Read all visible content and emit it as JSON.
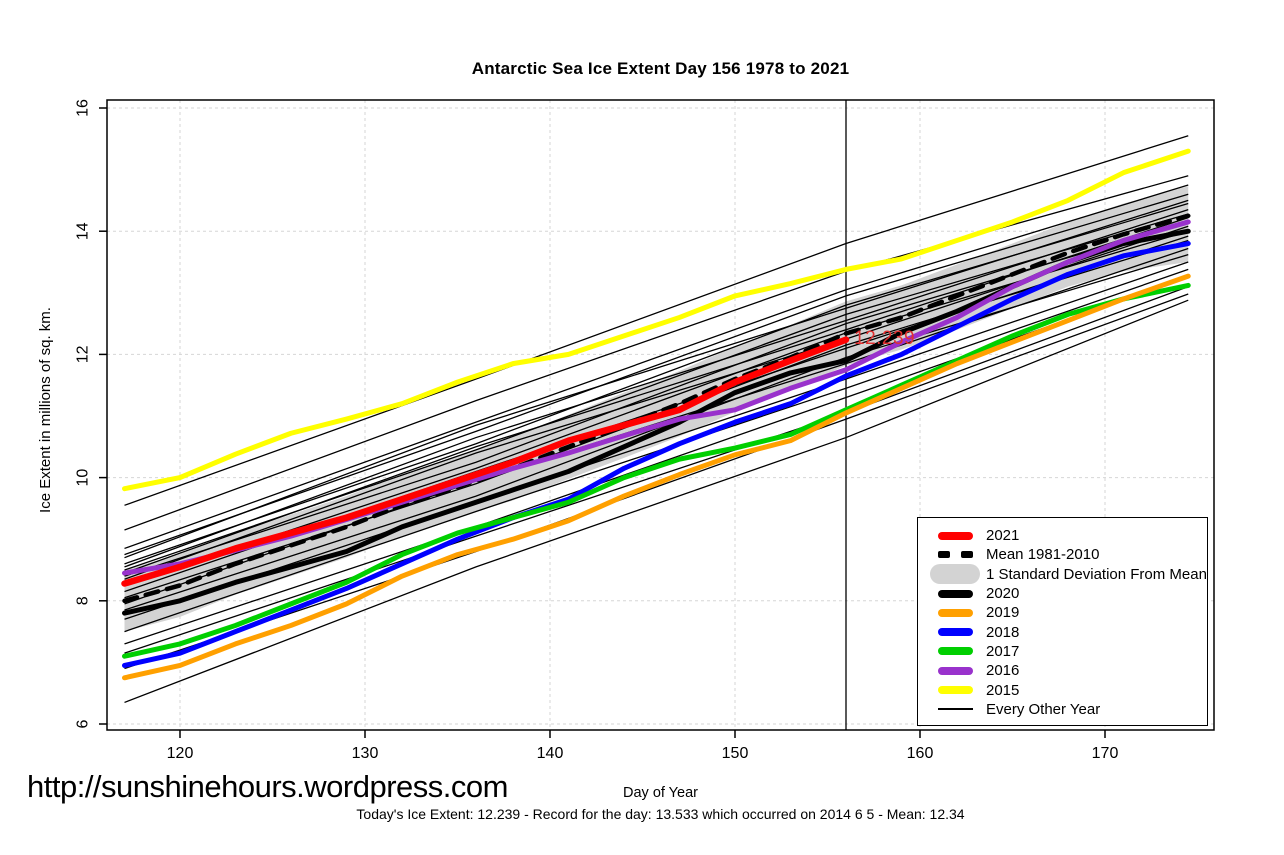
{
  "footer": {
    "url": "http://sunshinehours.wordpress.com",
    "caption": "Today's Ice Extent: 12.239  - Record for the day: 13.533 which occurred on 2014 6 5  - Mean: 12.34"
  },
  "chart_data": {
    "type": "line",
    "title": "Antarctic Sea Ice Extent Day 156 1978 to 2021",
    "xlabel": "Day of Year",
    "ylabel": "Ice Extent in millions of sq. km.",
    "xlim": [
      116,
      176
    ],
    "ylim": [
      6,
      16
    ],
    "x_ticks": [
      120,
      130,
      140,
      150,
      160,
      170
    ],
    "y_ticks": [
      6,
      8,
      10,
      12,
      14,
      16
    ],
    "grid": "dashed-lightgray",
    "grid_color": "#D6D6D6",
    "vline": {
      "day": 156,
      "color": "#000000"
    },
    "annotation": {
      "text": "12.239",
      "day": 156,
      "value": 12.239,
      "color": "#E03030"
    },
    "band": {
      "label": "1 Standard Deviation From Mean",
      "color": "#D3D3D3",
      "days": [
        117,
        120,
        123,
        126,
        129,
        132,
        135,
        138,
        141,
        144,
        147,
        150,
        153,
        156,
        159,
        162,
        165,
        168,
        171,
        174.5
      ],
      "upper": [
        8.5,
        8.76,
        9.1,
        9.4,
        9.7,
        10.05,
        10.35,
        10.67,
        11.02,
        11.38,
        11.73,
        12.13,
        12.48,
        12.86,
        13.12,
        13.46,
        13.8,
        14.15,
        14.45,
        14.73
      ],
      "lower": [
        7.5,
        7.74,
        8.1,
        8.4,
        8.7,
        9.05,
        9.35,
        9.63,
        9.98,
        10.32,
        10.67,
        11.07,
        11.42,
        11.82,
        12.08,
        12.4,
        12.75,
        13.1,
        13.35,
        13.5
      ]
    },
    "series": [
      {
        "name": "2021",
        "color": "#FF0000",
        "style": "solid-extra-thick",
        "days": [
          117,
          120,
          123,
          126,
          129,
          132,
          135,
          138,
          141,
          144,
          147,
          150,
          153,
          156
        ],
        "values": [
          8.28,
          8.55,
          8.85,
          9.1,
          9.35,
          9.65,
          9.95,
          10.25,
          10.6,
          10.85,
          11.1,
          11.55,
          11.9,
          12.239
        ]
      },
      {
        "name": "Mean 1981-2010",
        "color": "#000000",
        "style": "dashed-thick",
        "days": [
          117,
          120,
          123,
          126,
          129,
          132,
          135,
          138,
          141,
          144,
          147,
          150,
          153,
          156,
          159,
          162,
          165,
          168,
          171,
          174.5
        ],
        "values": [
          8.0,
          8.25,
          8.6,
          8.9,
          9.2,
          9.55,
          9.85,
          10.15,
          10.5,
          10.85,
          11.2,
          11.6,
          11.95,
          12.34,
          12.6,
          12.95,
          13.3,
          13.65,
          13.95,
          14.25
        ]
      },
      {
        "name": "2020",
        "color": "#000000",
        "style": "solid-thick",
        "days": [
          117,
          120,
          123,
          126,
          129,
          132,
          135,
          138,
          141,
          144,
          147,
          150,
          153,
          156,
          159,
          162,
          165,
          168,
          171,
          174.5
        ],
        "values": [
          7.8,
          8.0,
          8.3,
          8.55,
          8.8,
          9.2,
          9.5,
          9.8,
          10.1,
          10.5,
          10.9,
          11.38,
          11.7,
          11.9,
          12.35,
          12.7,
          13.1,
          13.5,
          13.8,
          14.0
        ]
      },
      {
        "name": "2019",
        "color": "#FFA000",
        "style": "solid-thick",
        "days": [
          117,
          120,
          123,
          126,
          129,
          132,
          135,
          138,
          141,
          144,
          147,
          150,
          153,
          156,
          159,
          162,
          165,
          168,
          171,
          174.5
        ],
        "values": [
          6.75,
          6.95,
          7.3,
          7.6,
          7.95,
          8.4,
          8.75,
          9.0,
          9.3,
          9.7,
          10.05,
          10.37,
          10.6,
          11.05,
          11.45,
          11.85,
          12.2,
          12.55,
          12.9,
          13.27
        ]
      },
      {
        "name": "2018",
        "color": "#0000FF",
        "style": "solid-thick",
        "days": [
          117,
          120,
          123,
          126,
          129,
          132,
          135,
          138,
          141,
          144,
          147,
          150,
          153,
          156,
          159,
          162,
          165,
          168,
          171,
          174.5
        ],
        "values": [
          6.95,
          7.15,
          7.5,
          7.85,
          8.2,
          8.6,
          9.0,
          9.35,
          9.65,
          10.15,
          10.55,
          10.9,
          11.2,
          11.65,
          12.0,
          12.45,
          12.9,
          13.3,
          13.6,
          13.8
        ]
      },
      {
        "name": "2017",
        "color": "#00CF00",
        "style": "solid-thick",
        "days": [
          117,
          120,
          123,
          126,
          129,
          132,
          135,
          138,
          141,
          144,
          147,
          150,
          153,
          156,
          159,
          162,
          165,
          168,
          171,
          174.5
        ],
        "values": [
          7.1,
          7.3,
          7.6,
          7.95,
          8.3,
          8.75,
          9.1,
          9.35,
          9.6,
          10.0,
          10.3,
          10.48,
          10.7,
          11.1,
          11.5,
          11.9,
          12.3,
          12.65,
          12.9,
          13.12
        ]
      },
      {
        "name": "2016",
        "color": "#9932CC",
        "style": "solid-thick",
        "days": [
          117,
          120,
          123,
          126,
          129,
          132,
          135,
          138,
          141,
          144,
          147,
          150,
          153,
          156,
          159,
          162,
          165,
          168,
          171,
          174.5
        ],
        "values": [
          8.45,
          8.6,
          8.82,
          9.05,
          9.32,
          9.6,
          9.88,
          10.15,
          10.4,
          10.68,
          10.95,
          11.1,
          11.45,
          11.75,
          12.2,
          12.6,
          13.1,
          13.5,
          13.85,
          14.15
        ]
      },
      {
        "name": "2015",
        "color": "#FFFF00",
        "style": "solid-thick",
        "days": [
          117,
          120,
          123,
          126,
          129,
          132,
          135,
          138,
          141,
          144,
          147,
          150,
          153,
          156,
          159,
          162,
          165,
          168,
          171,
          174.5
        ],
        "values": [
          9.82,
          10.0,
          10.38,
          10.72,
          10.95,
          11.2,
          11.55,
          11.85,
          12.0,
          12.3,
          12.6,
          12.95,
          13.15,
          13.38,
          13.55,
          13.85,
          14.15,
          14.5,
          14.95,
          15.3
        ]
      }
    ],
    "background_series": {
      "label": "Every Other Year",
      "color": "#000000",
      "style": "thin",
      "days": [
        117,
        136,
        156,
        174.5
      ],
      "lines": [
        [
          9.55,
          11.6,
          13.8,
          15.55
        ],
        [
          9.15,
          11.25,
          13.35,
          14.9
        ],
        [
          8.85,
          10.9,
          13.05,
          14.75
        ],
        [
          8.75,
          10.75,
          12.95,
          14.6
        ],
        [
          8.7,
          10.85,
          12.75,
          14.5
        ],
        [
          8.6,
          10.55,
          12.8,
          14.45
        ],
        [
          8.55,
          10.65,
          12.55,
          14.35
        ],
        [
          8.5,
          10.45,
          12.65,
          14.28
        ],
        [
          8.45,
          10.5,
          12.4,
          14.22
        ],
        [
          8.4,
          10.25,
          12.5,
          14.15
        ],
        [
          8.35,
          10.4,
          12.25,
          14.08
        ],
        [
          8.25,
          10.15,
          12.35,
          14.0
        ],
        [
          8.15,
          10.1,
          12.1,
          13.92
        ],
        [
          8.05,
          9.9,
          12.15,
          13.85
        ],
        [
          7.95,
          9.95,
          11.85,
          13.72
        ],
        [
          7.85,
          9.7,
          11.95,
          13.62
        ],
        [
          7.7,
          9.6,
          11.6,
          13.5
        ],
        [
          7.5,
          9.45,
          11.45,
          13.38
        ],
        [
          7.3,
          9.2,
          11.3,
          13.25
        ],
        [
          7.15,
          9.05,
          11.05,
          13.1
        ],
        [
          6.9,
          8.8,
          10.95,
          12.98
        ],
        [
          6.35,
          8.55,
          10.65,
          12.88
        ]
      ]
    },
    "legend": {
      "position": "bottom-right",
      "items": [
        {
          "label": "2021",
          "key": "thick-line",
          "color": "#FF0000"
        },
        {
          "label": "Mean 1981-2010",
          "key": "dashed-line",
          "color": "#000000"
        },
        {
          "label": "1 Standard Deviation From Mean",
          "key": "band",
          "color": "#D3D3D3"
        },
        {
          "label": "2020",
          "key": "thick-line",
          "color": "#000000"
        },
        {
          "label": "2019",
          "key": "thick-line",
          "color": "#FFA000"
        },
        {
          "label": "2018",
          "key": "thick-line",
          "color": "#0000FF"
        },
        {
          "label": "2017",
          "key": "thick-line",
          "color": "#00CF00"
        },
        {
          "label": "2016",
          "key": "thick-line",
          "color": "#9932CC"
        },
        {
          "label": "2015",
          "key": "thick-line",
          "color": "#FFFF00"
        },
        {
          "label": "Every Other Year",
          "key": "thin-line",
          "color": "#000000"
        }
      ]
    }
  }
}
